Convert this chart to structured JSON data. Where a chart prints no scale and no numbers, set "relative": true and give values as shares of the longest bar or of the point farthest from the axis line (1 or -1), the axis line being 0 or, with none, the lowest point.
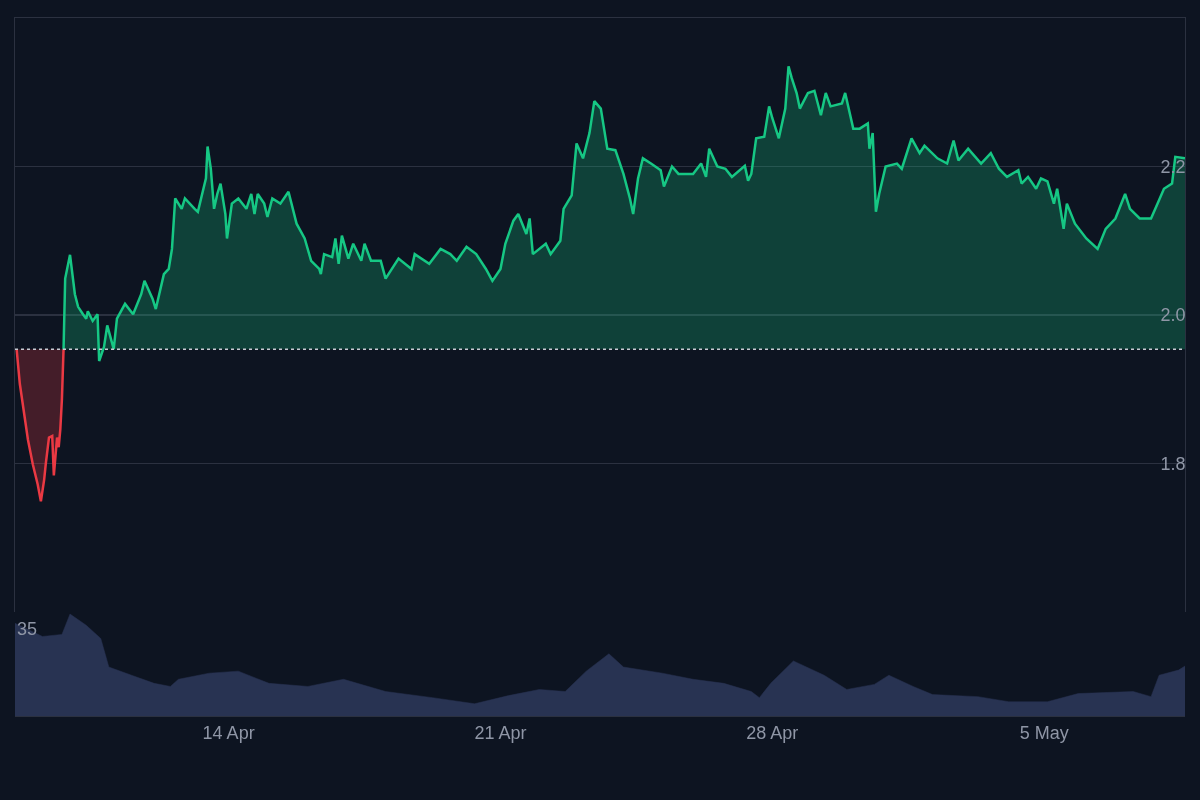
{
  "chart_data": [
    {
      "type": "area",
      "xlim": [
        "--04-08T12:00",
        "--05-08T15:00"
      ],
      "xticks": [
        {
          "value": "--04-14",
          "label": "14 Apr"
        },
        {
          "value": "--04-21",
          "label": "21 Apr"
        },
        {
          "value": "--04-28",
          "label": "28 Apr"
        },
        {
          "value": "--05-05",
          "label": "5 May"
        }
      ],
      "ylim": [
        1.6,
        2.4
      ],
      "yticks": [
        1.8,
        {
          "value": 2,
          "label": "2.0"
        },
        2.2
      ],
      "grid": "y",
      "marker": "none",
      "line_style": "solid",
      "tick_labels": "y",
      "ref_lines": [
        {
          "axis": "y",
          "value": 1.954,
          "line_style": "dotted",
          "color": "#c8ccd4"
        }
      ],
      "series": [
        {
          "color": "#ea3943",
          "x": [
            "--04-08T13:00",
            "--04-08T15:00",
            "--04-08T18:00",
            "--04-08T20:00",
            "--04-08T23:00",
            "--04-09T02:00",
            "--04-09T04:00",
            "--04-09T06:00",
            "--04-09T07:00",
            "--04-09T09:00",
            "--04-09T11:00",
            "--04-09T12:00",
            "--04-09T14:00",
            "--04-09T15:00",
            "--04-09T16:00",
            "--04-09T17:00",
            "--04-09T18:00"
          ],
          "values": [
            1.954,
            1.907,
            1.862,
            1.832,
            1.799,
            1.772,
            1.749,
            1.778,
            1.799,
            1.835,
            1.837,
            1.784,
            1.835,
            1.822,
            1.846,
            1.887,
            1.954
          ]
        },
        {
          "color": "#16c784",
          "x": [
            "--04-09T18:00",
            "--04-09T19:00",
            "--04-09T22:00",
            "--04-10T01:00",
            "--04-10T03:00",
            "--04-10T06:00",
            "--04-10T08:00",
            "--04-10T09:00",
            "--04-10T12:00",
            "--04-10T15:00",
            "--04-10T16:00",
            "--04-10T19:00",
            "--04-10T21:00",
            "--04-11T01:00",
            "--04-11T03:00",
            "--04-11T08:00",
            "--04-11T13:00",
            "--04-11T18:00",
            "--04-11T20:00",
            "--04-12T01:00",
            "--04-12T03:00",
            "--04-12T08:00",
            "--04-12T11:00",
            "--04-12T13:00",
            "--04-12T15:00",
            "--04-12T19:00",
            "--04-12T21:00",
            "--04-13T03:00",
            "--04-13T05:00",
            "--04-13T10:00",
            "--04-13T11:00",
            "--04-13T13:00",
            "--04-13T15:00",
            "--04-13T17:00",
            "--04-13T19:00",
            "--04-13T22:00",
            "--04-13T23:00",
            "--04-14T02:00",
            "--04-14T06:00",
            "--04-14T11:00",
            "--04-14T14:00",
            "--04-14T16:00",
            "--04-14T18:00",
            "--04-14T22:00",
            "--04-15T00:00",
            "--04-15T03:00",
            "--04-15T08:00",
            "--04-15T13:00",
            "--04-15T18:00",
            "--04-15T23:00",
            "--04-16T03:00",
            "--04-16T08:00",
            "--04-16T09:00",
            "--04-16T11:00",
            "--04-16T16:00",
            "--04-16T18:00",
            "--04-16T20:00",
            "--04-16T22:00",
            "--04-17T02:00",
            "--04-17T05:00",
            "--04-17T10:00",
            "--04-17T12:00",
            "--04-17T16:00",
            "--04-17T22:00",
            "--04-18T01:00",
            "--04-18T09:00",
            "--04-18T17:00",
            "--04-18T19:00",
            "--04-19T04:00",
            "--04-19T11:00",
            "--04-19T17:00",
            "--04-19T21:00",
            "--04-20T03:00",
            "--04-20T09:00",
            "--04-20T15:00",
            "--04-20T19:00",
            "--04-21T00:00",
            "--04-21T03:00",
            "--04-21T08:00",
            "--04-21T11:00",
            "--04-21T16:00",
            "--04-21T18:00",
            "--04-21T20:00",
            "--04-22T04:00",
            "--04-22T07:00",
            "--04-22T13:00",
            "--04-22T15:00",
            "--04-22T20:00",
            "--04-22T23:00",
            "--04-23T03:00",
            "--04-23T07:00",
            "--04-23T10:00",
            "--04-23T14:00",
            "--04-23T18:00",
            "--04-23T23:00",
            "--04-24T04:00",
            "--04-24T08:00",
            "--04-24T10:00",
            "--04-24T13:00",
            "--04-24T16:00",
            "--04-24T21:00",
            "--04-25T03:00",
            "--04-25T05:00",
            "--04-25T10:00",
            "--04-25T14:00",
            "--04-25T18:00",
            "--04-25T23:00",
            "--04-26T04:00",
            "--04-26T07:00",
            "--04-26T09:00",
            "--04-26T14:00",
            "--04-26T19:00",
            "--04-26T23:00",
            "--04-27T07:00",
            "--04-27T09:00",
            "--04-27T11:00",
            "--04-27T14:00",
            "--04-27T19:00",
            "--04-27T22:00",
            "--04-28T00:00",
            "--04-28T04:00",
            "--04-28T08:00",
            "--04-28T10:00",
            "--04-28T12:00",
            "--04-28T15:00",
            "--04-28T17:00",
            "--04-28T22:00",
            "--04-29T02:00",
            "--04-29T06:00",
            "--04-29T09:00",
            "--04-29T12:00",
            "--04-29T19:00",
            "--04-29T21:00",
            "--04-30T02:00",
            "--04-30T06:00",
            "--04-30T11:00",
            "--04-30T12:00",
            "--04-30T14:00",
            "--04-30T16:00",
            "--04-30T18:00",
            "--04-30T22:00",
            "--05-01T05:00",
            "--05-01T08:00",
            "--05-01T14:00",
            "--05-01T19:00",
            "--05-01T22:00",
            "--05-02T06:00",
            "--05-02T12:00",
            "--05-02T16:00",
            "--05-02T19:00",
            "--05-03T01:00",
            "--05-03T09:00",
            "--05-03T15:00",
            "--05-03T20:00",
            "--05-04T01:00",
            "--05-04T08:00",
            "--05-04T10:00",
            "--05-04T14:00",
            "--05-04T19:00",
            "--05-04T22:00",
            "--05-05T02:00",
            "--05-05T06:00",
            "--05-05T08:00",
            "--05-05T12:00",
            "--05-05T14:00",
            "--05-05T19:00",
            "--05-06T02:00",
            "--05-06T09:00",
            "--05-06T14:00",
            "--05-06T20:00",
            "--05-07T02:00",
            "--05-07T05:00",
            "--05-07T11:00",
            "--05-07T15:00",
            "--05-07T18:00",
            "--05-07T22:00",
            "--05-08T02:00",
            "--05-08T07:00",
            "--05-08T09:00",
            "--05-08T15:00"
          ],
          "values": [
            1.954,
            2.049,
            2.081,
            2.028,
            2.011,
            2.001,
            1.995,
            2.005,
            1.992,
            2.001,
            1.938,
            1.957,
            1.986,
            1.954,
            1.995,
            2.015,
            2.001,
            2.028,
            2.046,
            2.022,
            2.008,
            2.055,
            2.062,
            2.089,
            2.157,
            2.143,
            2.157,
            2.143,
            2.139,
            2.184,
            2.227,
            2.197,
            2.143,
            2.163,
            2.177,
            2.136,
            2.103,
            2.15,
            2.157,
            2.143,
            2.163,
            2.136,
            2.163,
            2.15,
            2.132,
            2.157,
            2.15,
            2.166,
            2.123,
            2.103,
            2.073,
            2.062,
            2.055,
            2.082,
            2.078,
            2.103,
            2.069,
            2.107,
            2.076,
            2.096,
            2.073,
            2.096,
            2.073,
            2.073,
            2.049,
            2.076,
            2.062,
            2.082,
            2.069,
            2.089,
            2.082,
            2.073,
            2.092,
            2.082,
            2.062,
            2.046,
            2.062,
            2.096,
            2.127,
            2.136,
            2.109,
            2.13,
            2.082,
            2.096,
            2.082,
            2.1,
            2.143,
            2.161,
            2.231,
            2.211,
            2.245,
            2.288,
            2.278,
            2.224,
            2.222,
            2.19,
            2.157,
            2.136,
            2.184,
            2.211,
            2.204,
            2.195,
            2.173,
            2.2,
            2.19,
            2.19,
            2.19,
            2.204,
            2.186,
            2.224,
            2.2,
            2.197,
            2.186,
            2.201,
            2.181,
            2.19,
            2.238,
            2.24,
            2.281,
            2.265,
            2.238,
            2.278,
            2.335,
            2.319,
            2.299,
            2.278,
            2.299,
            2.302,
            2.269,
            2.299,
            2.281,
            2.285,
            2.299,
            2.251,
            2.251,
            2.258,
            2.224,
            2.245,
            2.139,
            2.163,
            2.2,
            2.204,
            2.197,
            2.238,
            2.218,
            2.228,
            2.211,
            2.204,
            2.235,
            2.208,
            2.224,
            2.204,
            2.218,
            2.197,
            2.186,
            2.195,
            2.177,
            2.186,
            2.17,
            2.184,
            2.18,
            2.15,
            2.17,
            2.116,
            2.15,
            2.123,
            2.103,
            2.089,
            2.116,
            2.13,
            2.163,
            2.143,
            2.13,
            2.13,
            2.13,
            2.15,
            2.17,
            2.177,
            2.213,
            2.211
          ]
        }
      ]
    },
    {
      "type": "area",
      "relative": true,
      "xlim": [
        "--04-08T12:00",
        "--05-08T15:00"
      ],
      "xticks": [
        {
          "value": "--04-14",
          "label": "14 Apr"
        },
        {
          "value": "--04-21",
          "label": "21 Apr"
        },
        {
          "value": "--04-28",
          "label": "28 Apr"
        },
        {
          "value": "--05-05",
          "label": "5 May"
        }
      ],
      "grid": false,
      "marker": "none",
      "tick_labels": "x",
      "annotations": [
        "35"
      ],
      "series": [
        {
          "color": "#283352",
          "x": [
            "--04-08T12:00",
            "--04-09T05:00",
            "--04-09T17:00",
            "--04-09T22:00",
            "--04-10T08:00",
            "--04-10T17:00",
            "--04-10T22:00",
            "--04-11T12:00",
            "--04-12T02:00",
            "--04-12T12:00",
            "--04-12T17:00",
            "--04-13T12:00",
            "--04-14T06:00",
            "--04-15T01:00",
            "--04-16T01:00",
            "--04-16T23:00",
            "--04-18T01:00",
            "--04-19T06:00",
            "--04-20T08:00",
            "--04-21T05:00",
            "--04-22T00:00",
            "--04-22T16:00",
            "--04-23T05:00",
            "--04-23T19:00",
            "--04-24T04:00",
            "--04-25T04:00",
            "--04-25T23:00",
            "--04-26T18:00",
            "--04-27T11:00",
            "--04-27T16:00",
            "--04-27T23:00",
            "--04-28T13:00",
            "--04-29T08:00",
            "--04-29T22:00",
            "--04-30T15:00",
            "--05-01T00:00",
            "--05-01T15:00",
            "--05-02T03:00",
            "--05-03T07:00",
            "--05-04T02:00",
            "--05-05T02:00",
            "--05-05T21:00",
            "--05-07T07:00",
            "--05-07T18:00",
            "--05-07T23:00",
            "--05-08T11:00",
            "--05-08T15:00"
          ],
          "values": [
            0.91,
            0.78,
            0.8,
            1,
            0.89,
            0.76,
            0.48,
            0.4,
            0.32,
            0.29,
            0.36,
            0.42,
            0.44,
            0.32,
            0.29,
            0.36,
            0.24,
            0.18,
            0.12,
            0.2,
            0.26,
            0.24,
            0.44,
            0.61,
            0.48,
            0.42,
            0.36,
            0.32,
            0.24,
            0.18,
            0.32,
            0.54,
            0.4,
            0.26,
            0.31,
            0.4,
            0.29,
            0.21,
            0.19,
            0.14,
            0.14,
            0.22,
            0.24,
            0.19,
            0.4,
            0.45,
            0.49
          ]
        }
      ]
    }
  ]
}
